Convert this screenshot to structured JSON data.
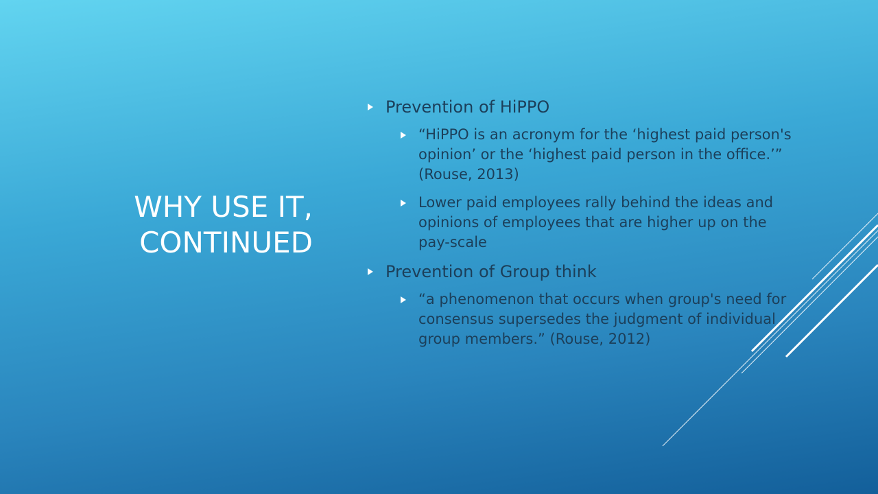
{
  "slide": {
    "title_lines": [
      "WHY USE IT,",
      "CONTINUED"
    ],
    "bullets": [
      {
        "text": "Prevention of HiPPO",
        "sub": [
          "“HiPPO is an acronym for the ‘highest paid person's opinion’ or the ‘highest paid person in the office.’” (Rouse, 2013)",
          "Lower paid employees rally behind the ideas and opinions of employees that are higher up on the pay-scale"
        ]
      },
      {
        "text": "Prevention of Group think",
        "sub": [
          "“a phenomenon that occurs when group's need for consensus supersedes the judgment of individual group members.” (Rouse, 2012)"
        ]
      }
    ],
    "bullet_icon": "triangle-right-icon",
    "colors": {
      "title": "#ffffff",
      "body_text": "#1c3f5a",
      "bullet": "#ffffff",
      "accent_lines": "#ffffff"
    }
  }
}
